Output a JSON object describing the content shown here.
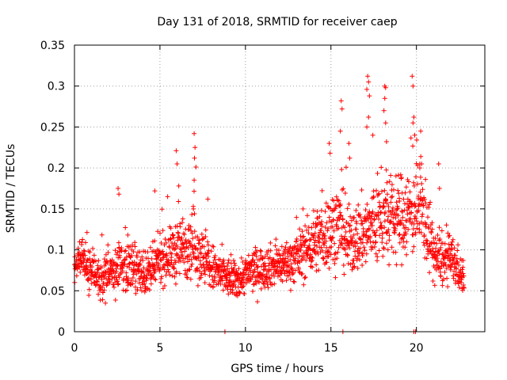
{
  "chart_data": {
    "type": "scatter",
    "title": "Day 131 of 2018, SRMTID for receiver caep",
    "xlabel": "GPS time / hours",
    "ylabel": "SRMTID / TECUs",
    "xlim": [
      0,
      24
    ],
    "ylim": [
      0,
      0.35
    ],
    "x_ticks": [
      0,
      5,
      10,
      15,
      20
    ],
    "x_tick_labels": [
      "0",
      "5",
      "10",
      "15",
      "20"
    ],
    "y_ticks": [
      0,
      0.05,
      0.1,
      0.15,
      0.2,
      0.25,
      0.3,
      0.35
    ],
    "y_tick_labels": [
      "0",
      "0.05",
      "0.1",
      "0.15",
      "0.2",
      "0.25",
      "0.3",
      "0.35"
    ],
    "grid": true,
    "marker": "+",
    "marker_color": "#ff0000",
    "baseline_color": "#000000",
    "grid_color": "#a0a0a0",
    "series": [
      {
        "name": "SRMTID",
        "envelope": {
          "x": [
            0,
            0.5,
            1,
            1.5,
            2,
            2.5,
            3,
            3.5,
            4,
            4.5,
            5,
            5.5,
            6,
            6.5,
            7,
            7.5,
            8,
            8.5,
            9,
            9.5,
            10,
            10.5,
            11,
            11.5,
            12,
            12.5,
            13,
            13.5,
            14,
            14.5,
            15,
            15.5,
            16,
            16.5,
            17,
            17.5,
            18,
            18.5,
            19,
            19.5,
            20,
            20.5,
            21,
            21.5,
            22,
            22.5,
            22.8
          ],
          "mean": [
            0.082,
            0.085,
            0.075,
            0.062,
            0.07,
            0.078,
            0.082,
            0.08,
            0.07,
            0.072,
            0.09,
            0.092,
            0.1,
            0.105,
            0.11,
            0.09,
            0.078,
            0.07,
            0.065,
            0.062,
            0.07,
            0.075,
            0.078,
            0.08,
            0.082,
            0.085,
            0.09,
            0.1,
            0.11,
            0.115,
            0.125,
            0.13,
            0.11,
            0.115,
            0.12,
            0.13,
            0.14,
            0.135,
            0.14,
            0.145,
            0.15,
            0.14,
            0.095,
            0.085,
            0.09,
            0.075,
            0.06
          ],
          "spread": [
            0.03,
            0.03,
            0.03,
            0.025,
            0.03,
            0.035,
            0.035,
            0.03,
            0.03,
            0.03,
            0.035,
            0.035,
            0.045,
            0.045,
            0.05,
            0.04,
            0.035,
            0.03,
            0.028,
            0.025,
            0.028,
            0.03,
            0.03,
            0.03,
            0.03,
            0.032,
            0.035,
            0.04,
            0.045,
            0.05,
            0.055,
            0.055,
            0.05,
            0.05,
            0.055,
            0.06,
            0.065,
            0.06,
            0.06,
            0.065,
            0.06,
            0.06,
            0.04,
            0.035,
            0.035,
            0.03,
            0.025
          ]
        },
        "sample_interval_hours": 0.012,
        "points_per_sample": 1,
        "seed": 131,
        "outliers": [
          {
            "x": 2.55,
            "y": 0.175
          },
          {
            "x": 2.6,
            "y": 0.168
          },
          {
            "x": 4.7,
            "y": 0.172
          },
          {
            "x": 5.45,
            "y": 0.165
          },
          {
            "x": 5.95,
            "y": 0.221
          },
          {
            "x": 6.0,
            "y": 0.205
          },
          {
            "x": 6.1,
            "y": 0.178
          },
          {
            "x": 7.0,
            "y": 0.242
          },
          {
            "x": 7.05,
            "y": 0.225
          },
          {
            "x": 7.02,
            "y": 0.212
          },
          {
            "x": 7.0,
            "y": 0.185
          },
          {
            "x": 7.8,
            "y": 0.162
          },
          {
            "x": 14.9,
            "y": 0.23
          },
          {
            "x": 14.95,
            "y": 0.218
          },
          {
            "x": 15.6,
            "y": 0.282
          },
          {
            "x": 15.65,
            "y": 0.272
          },
          {
            "x": 15.55,
            "y": 0.245
          },
          {
            "x": 16.05,
            "y": 0.23
          },
          {
            "x": 16.1,
            "y": 0.212
          },
          {
            "x": 17.15,
            "y": 0.312
          },
          {
            "x": 17.2,
            "y": 0.305
          },
          {
            "x": 17.1,
            "y": 0.296
          },
          {
            "x": 17.25,
            "y": 0.288
          },
          {
            "x": 17.2,
            "y": 0.262
          },
          {
            "x": 17.1,
            "y": 0.25
          },
          {
            "x": 17.45,
            "y": 0.24
          },
          {
            "x": 18.15,
            "y": 0.3
          },
          {
            "x": 18.2,
            "y": 0.298
          },
          {
            "x": 18.15,
            "y": 0.285
          },
          {
            "x": 18.1,
            "y": 0.27
          },
          {
            "x": 18.2,
            "y": 0.255
          },
          {
            "x": 18.25,
            "y": 0.232
          },
          {
            "x": 19.75,
            "y": 0.312
          },
          {
            "x": 19.8,
            "y": 0.3
          },
          {
            "x": 19.85,
            "y": 0.262
          },
          {
            "x": 19.8,
            "y": 0.255
          },
          {
            "x": 19.9,
            "y": 0.24
          },
          {
            "x": 20.25,
            "y": 0.245
          },
          {
            "x": 20.2,
            "y": 0.2
          },
          {
            "x": 20.3,
            "y": 0.205
          },
          {
            "x": 21.3,
            "y": 0.205
          },
          {
            "x": 21.35,
            "y": 0.175
          },
          {
            "x": 8.8,
            "y": 0.0
          },
          {
            "x": 15.7,
            "y": 0.0
          },
          {
            "x": 19.85,
            "y": 0.0
          },
          {
            "x": 19.95,
            "y": 0.0
          }
        ]
      }
    ]
  }
}
